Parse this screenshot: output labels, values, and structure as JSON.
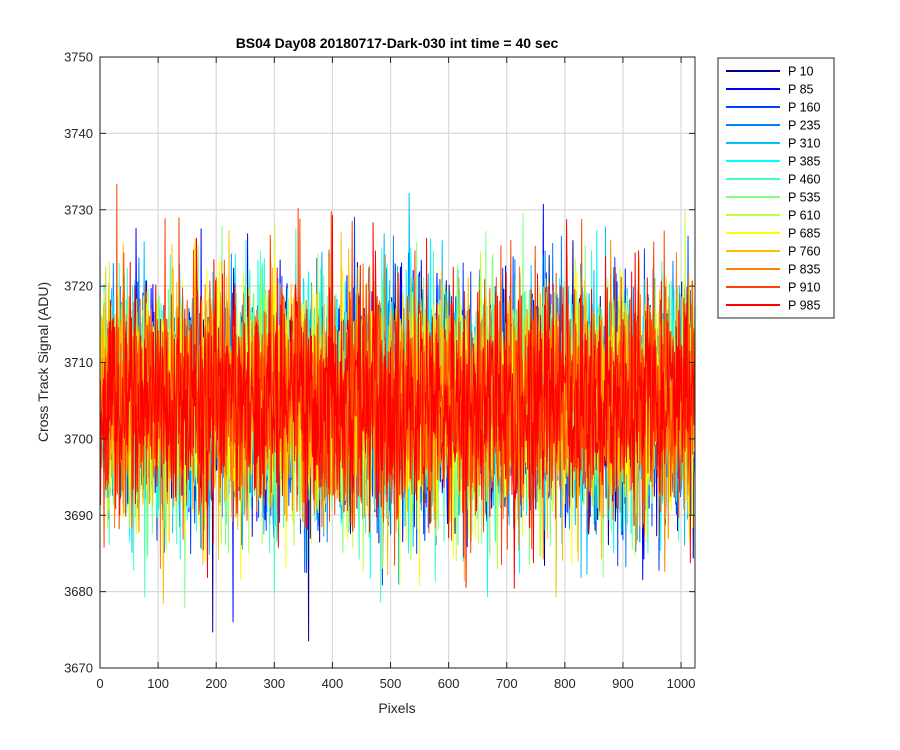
{
  "chart_data": {
    "type": "line",
    "title": "BS04 Day08 20180717-Dark-030 int time = 40 sec",
    "xlabel": "Pixels",
    "ylabel": "Cross Track Signal (ADU)",
    "xlim": [
      0,
      1024
    ],
    "ylim": [
      3670,
      3750
    ],
    "xticks": [
      0,
      100,
      200,
      300,
      400,
      500,
      600,
      700,
      800,
      900,
      1000
    ],
    "yticks": [
      3670,
      3680,
      3690,
      3700,
      3710,
      3720,
      3730,
      3740,
      3750
    ],
    "grid": true,
    "legend_placement": "outside-right-top",
    "noise_mean": 3705,
    "noise_sigma": 7.5,
    "series": [
      {
        "name": "P 10",
        "color": "#00008f"
      },
      {
        "name": "P 85",
        "color": "#0000ff"
      },
      {
        "name": "P 160",
        "color": "#0040ff"
      },
      {
        "name": "P 235",
        "color": "#0080ff"
      },
      {
        "name": "P 310",
        "color": "#00bfff"
      },
      {
        "name": "P 385",
        "color": "#00ffff"
      },
      {
        "name": "P 460",
        "color": "#40ffbf"
      },
      {
        "name": "P 535",
        "color": "#80ff80"
      },
      {
        "name": "P 610",
        "color": "#bfff40"
      },
      {
        "name": "P 685",
        "color": "#ffff00"
      },
      {
        "name": "P 760",
        "color": "#ffbf00"
      },
      {
        "name": "P 835",
        "color": "#ff8000"
      },
      {
        "name": "P 910",
        "color": "#ff4000"
      },
      {
        "name": "P 985",
        "color": "#ff0000"
      }
    ]
  }
}
